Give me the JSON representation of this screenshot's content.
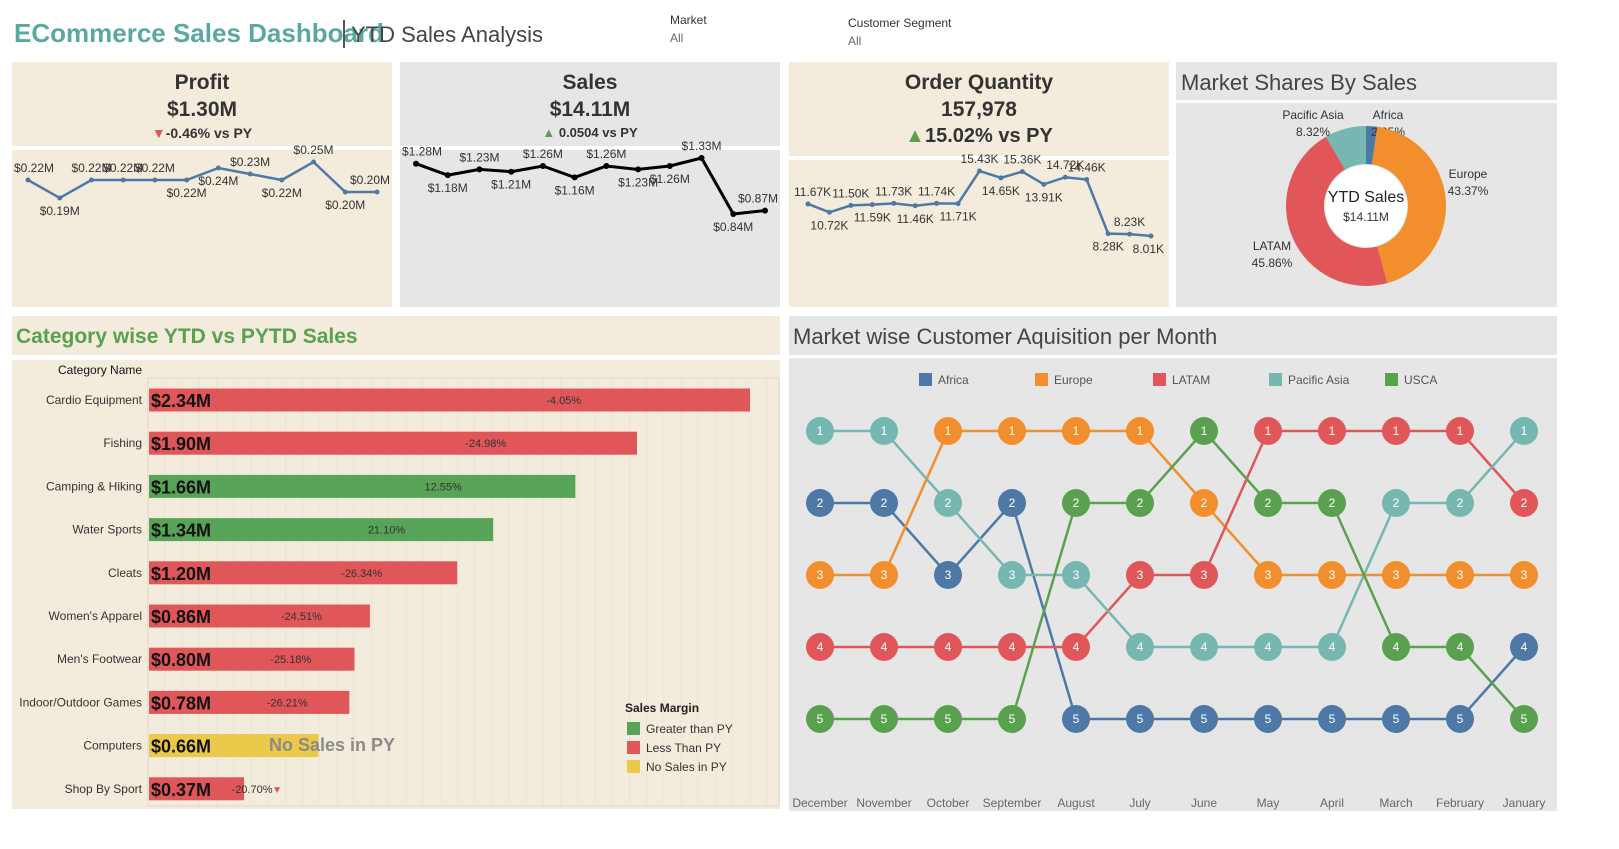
{
  "header": {
    "title": "ECommerce Sales Dashboard",
    "subtitle": "YTD Sales Analysis",
    "filters": [
      {
        "label": "Market",
        "value": "All"
      },
      {
        "label": "Customer Segment",
        "value": "All"
      }
    ]
  },
  "kpis": {
    "profit": {
      "title": "Profit",
      "value": "$1.30M",
      "delta": "-0.46% vs PY",
      "direction": "down"
    },
    "sales": {
      "title": "Sales",
      "value": "$14.11M",
      "delta": "0.0504 vs PY",
      "direction": "up"
    },
    "orders": {
      "title": "Order Quantity",
      "value": "157,978",
      "delta": "15.02% vs PY",
      "direction": "up"
    }
  },
  "market_share": {
    "title": "Market Shares By Sales",
    "center_label": "YTD Sales",
    "center_value": "$14.11M"
  },
  "category_section": {
    "title": "Category wise YTD vs PYTD Sales",
    "column_header": "Category Name",
    "no_sales_text": "No Sales in PY",
    "legend_title": "Sales Margin",
    "legend": [
      {
        "label": "Greater than PY",
        "color": "#57a357"
      },
      {
        "label": "Less Than PY",
        "color": "#e05659"
      },
      {
        "label": "No Sales in PY",
        "color": "#ecc94b"
      }
    ]
  },
  "acquisition_section": {
    "title": "Market wise Customer Aquisition per Month"
  },
  "colors": {
    "accent_teal": "#5aa8a0",
    "beige": "#f3ecdc",
    "grey": "#e6e6e6",
    "Africa": "#4e79a7",
    "Europe": "#f28e2b",
    "LATAM": "#e15759",
    "Pacific Asia": "#76b7b2",
    "USCA": "#59a14f",
    "up": "#59a14f",
    "down": "#e15759"
  },
  "chart_data": [
    {
      "id": "profit_trend",
      "type": "line",
      "labels": [
        "$0.22M",
        "$0.19M",
        "$0.22M",
        "$0.22M",
        "$0.22M",
        "$0.22M",
        "$0.24M",
        "$0.23M",
        "$0.22M",
        "$0.25M",
        "$0.20M",
        "$0.20M"
      ],
      "values": [
        0.22,
        0.19,
        0.22,
        0.22,
        0.22,
        0.22,
        0.24,
        0.23,
        0.22,
        0.25,
        0.2,
        0.2
      ],
      "color": "#4e79a7"
    },
    {
      "id": "sales_trend",
      "type": "line",
      "labels": [
        "$1.28M",
        "$1.18M",
        "$1.23M",
        "$1.21M",
        "$1.26M",
        "$1.16M",
        "$1.26M",
        "$1.23M",
        "$1.26M",
        "$1.33M",
        "$0.84M",
        "$0.87M"
      ],
      "values": [
        1.28,
        1.18,
        1.23,
        1.21,
        1.26,
        1.16,
        1.26,
        1.23,
        1.26,
        1.33,
        0.84,
        0.87
      ],
      "color": "#000000"
    },
    {
      "id": "orders_trend",
      "type": "line",
      "labels": [
        "11.67K",
        "10.72K",
        "11.50K",
        "11.59K",
        "11.73K",
        "11.46K",
        "11.74K",
        "11.71K",
        "15.43K",
        "14.65K",
        "15.36K",
        "13.91K",
        "14.72K",
        "14.46K",
        "8.28K",
        "8.23K",
        "8.01K"
      ],
      "values": [
        11.67,
        10.72,
        11.5,
        11.59,
        11.73,
        11.46,
        11.74,
        11.71,
        15.43,
        14.65,
        15.36,
        13.91,
        14.72,
        14.46,
        8.28,
        8.23,
        8.01
      ],
      "color": "#4e79a7"
    },
    {
      "id": "market_share_pie",
      "type": "pie",
      "slices": [
        {
          "label": "Africa",
          "pct_label": "2.25%",
          "value": 2.25,
          "color": "#4e79a7"
        },
        {
          "label": "Europe",
          "pct_label": "43.37%",
          "value": 43.37,
          "color": "#f28e2b"
        },
        {
          "label": "LATAM",
          "pct_label": "45.86%",
          "value": 45.86,
          "color": "#e15759"
        },
        {
          "label": "Pacific Asia",
          "pct_label": "8.32%",
          "value": 8.32,
          "color": "#76b7b2"
        }
      ]
    },
    {
      "id": "category_sales",
      "type": "bar",
      "categories": [
        "Cardio Equipment",
        "Fishing",
        "Camping & Hiking",
        "Water Sports",
        "Cleats",
        "Women's Apparel",
        "Men's Footwear",
        "Indoor/Outdoor Games",
        "Computers",
        "Shop By Sport"
      ],
      "values": [
        2.34,
        1.9,
        1.66,
        1.34,
        1.2,
        0.86,
        0.8,
        0.78,
        0.66,
        0.37
      ],
      "value_labels": [
        "$2.34M",
        "$1.90M",
        "$1.66M",
        "$1.34M",
        "$1.20M",
        "$0.86M",
        "$0.80M",
        "$0.78M",
        "$0.66M",
        "$0.37M"
      ],
      "growth_labels": [
        "-4.05%",
        "-24.98%",
        "12.55%",
        "21.10%",
        "-26.34%",
        "-24.51%",
        "-25.18%",
        "-26.21%",
        "",
        "-20.70%"
      ],
      "status": [
        "less",
        "less",
        "greater",
        "greater",
        "less",
        "less",
        "less",
        "less",
        "none",
        "less"
      ]
    },
    {
      "id": "customer_acquisition_bump",
      "type": "line",
      "x": [
        "December",
        "November",
        "October",
        "September",
        "August",
        "July",
        "June",
        "May",
        "April",
        "March",
        "February",
        "January"
      ],
      "series": [
        {
          "name": "Africa",
          "color": "#4e79a7",
          "values": [
            2,
            2,
            3,
            2,
            5,
            5,
            5,
            5,
            5,
            5,
            5,
            4
          ]
        },
        {
          "name": "Europe",
          "color": "#f28e2b",
          "values": [
            3,
            3,
            1,
            1,
            1,
            1,
            2,
            3,
            3,
            3,
            3,
            3
          ]
        },
        {
          "name": "LATAM",
          "color": "#e15759",
          "values": [
            4,
            4,
            4,
            4,
            4,
            3,
            3,
            1,
            1,
            1,
            1,
            2
          ]
        },
        {
          "name": "Pacific Asia",
          "color": "#76b7b2",
          "values": [
            1,
            1,
            2,
            3,
            3,
            4,
            4,
            4,
            4,
            2,
            2,
            1
          ]
        },
        {
          "name": "USCA",
          "color": "#59a14f",
          "values": [
            5,
            5,
            5,
            5,
            2,
            2,
            1,
            2,
            2,
            4,
            4,
            5
          ]
        }
      ]
    }
  ]
}
